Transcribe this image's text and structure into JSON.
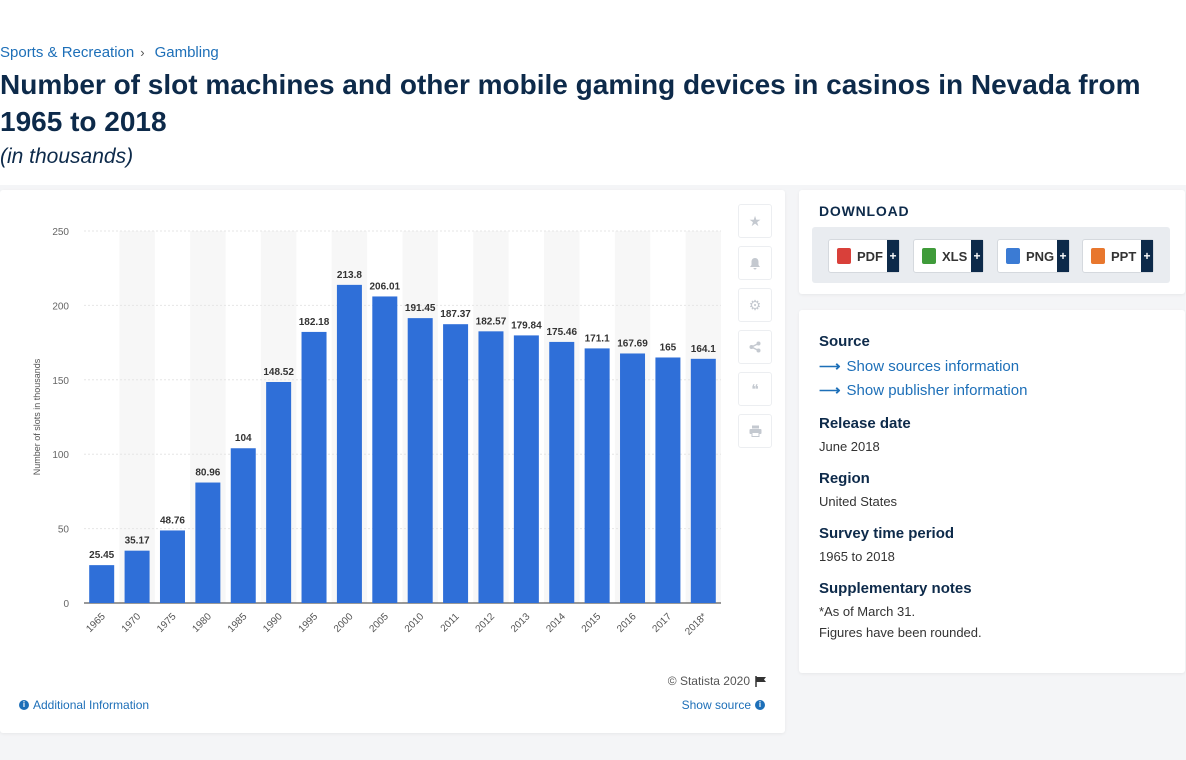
{
  "breadcrumb": {
    "category": "Sports & Recreation",
    "separator": "›",
    "subcategory": "Gambling"
  },
  "title": "Number of slot machines and other mobile gaming devices in casinos in Nevada from 1965 to 2018",
  "subtitle": "(in thousands)",
  "chart_data": {
    "type": "bar",
    "categories": [
      "1965",
      "1970",
      "1975",
      "1980",
      "1985",
      "1990",
      "1995",
      "2000",
      "2005",
      "2010",
      "2011",
      "2012",
      "2013",
      "2014",
      "2015",
      "2016",
      "2017",
      "2018*"
    ],
    "values": [
      25.45,
      35.17,
      48.76,
      80.96,
      104,
      148.52,
      182.18,
      213.8,
      206.01,
      191.45,
      187.37,
      182.57,
      179.84,
      175.46,
      171.1,
      167.69,
      165,
      164.1
    ],
    "value_labels": [
      "25.45",
      "35.17",
      "48.76",
      "80.96",
      "104",
      "148.52",
      "182.18",
      "213.8",
      "206.01",
      "191.45",
      "187.37",
      "182.57",
      "179.84",
      "175.46",
      "171.1",
      "167.69",
      "165",
      "164.1"
    ],
    "ylabel": "Number of slots in thousands",
    "ylim": [
      0,
      250
    ],
    "yticks": [
      0,
      50,
      100,
      150,
      200,
      250
    ],
    "grid": true,
    "bar_color": "#2f6fd8"
  },
  "chart_footer": {
    "copyright": "© Statista 2020",
    "additional_info": "Additional Information",
    "show_source": "Show source"
  },
  "download": {
    "title": "DOWNLOAD",
    "buttons": [
      {
        "label": "PDF",
        "color": "#d9403a"
      },
      {
        "label": "XLS",
        "color": "#3f9b3a"
      },
      {
        "label": "PNG",
        "color": "#3b7bd4"
      },
      {
        "label": "PPT",
        "color": "#e8772e"
      }
    ],
    "plus": "+"
  },
  "source_panel": {
    "source_heading": "Source",
    "show_sources": "Show sources information",
    "show_publisher": "Show publisher information",
    "release_heading": "Release date",
    "release_value": "June 2018",
    "region_heading": "Region",
    "region_value": "United States",
    "survey_heading": "Survey time period",
    "survey_value": "1965 to 2018",
    "notes_heading": "Supplementary notes",
    "notes_line1": "*As of March 31.",
    "notes_line2": "Figures have been rounded."
  }
}
